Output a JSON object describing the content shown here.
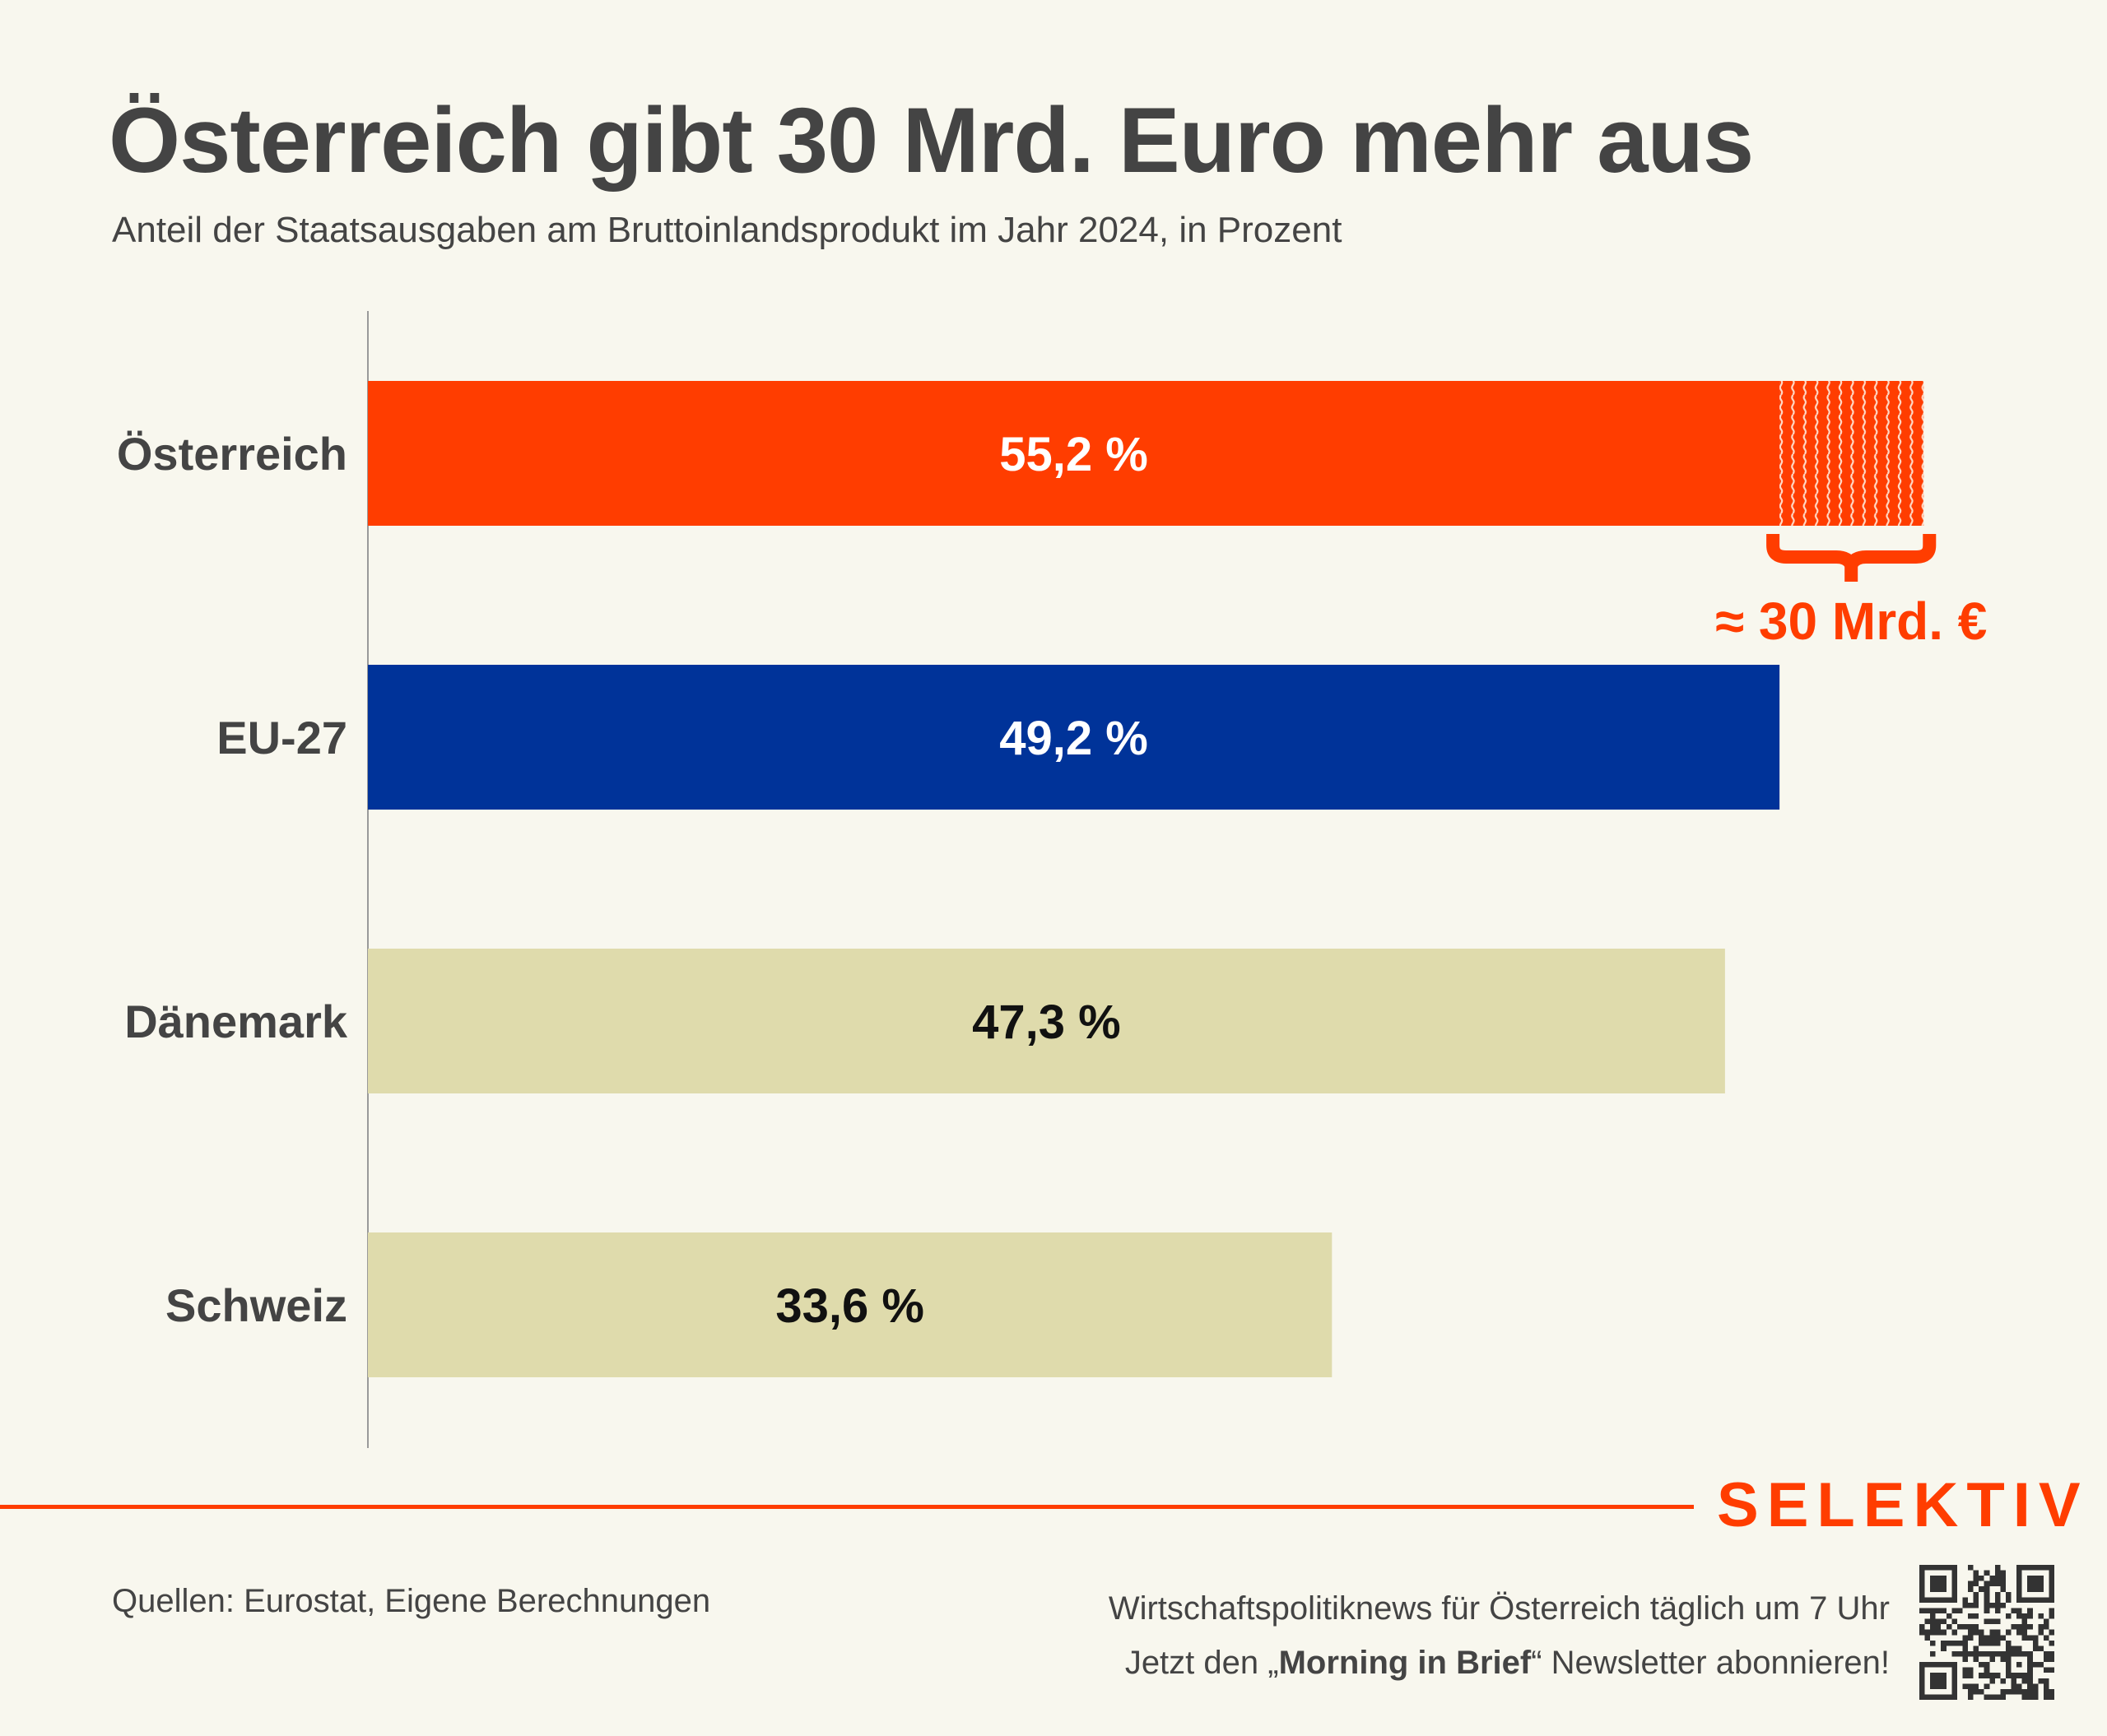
{
  "header": {
    "title": "Österreich gibt 30 Mrd. Euro mehr aus",
    "subtitle": "Anteil der Staatsausgaben am Bruttoinlandsprodukt im Jahr 2024, in Prozent"
  },
  "colors": {
    "background": "#f8f7ee",
    "accent": "#ff3d00",
    "eu_blue": "#003399",
    "neutral": "#dfdbac",
    "text": "#444444",
    "axis": "#9a9a9a"
  },
  "chart_data": {
    "type": "bar",
    "orientation": "horizontal",
    "title": "Österreich gibt 30 Mrd. Euro mehr aus",
    "subtitle": "Anteil der Staatsausgaben am Bruttoinlandsprodukt im Jahr 2024, in Prozent",
    "xlabel": "",
    "ylabel": "",
    "unit": "%",
    "grid": false,
    "legend": "none",
    "categories": [
      "Österreich",
      "EU-27",
      "Dänemark",
      "Schweiz"
    ],
    "values": [
      55.2,
      49.2,
      47.3,
      33.6
    ],
    "value_labels": [
      "55,2 %",
      "49,2 %",
      "47,3 %",
      "33,6 %"
    ],
    "bar_colors": [
      "#ff3d00",
      "#003399",
      "#dfdbac",
      "#dfdbac"
    ],
    "label_colors": [
      "#ffffff",
      "#ffffff",
      "#111111",
      "#111111"
    ],
    "xlim": [
      0,
      55.2
    ],
    "annotation": {
      "category": "Österreich",
      "from": 49.2,
      "to": 55.2,
      "pattern": "wavy-lines",
      "brace": true,
      "label": "≈ 30 Mrd. €"
    }
  },
  "footer": {
    "brand": "SELEKTIV",
    "sources": "Quellen: Eurostat, Eigene Berechnungen",
    "promo_line1": "Wirtschaftspolitiknews für Österreich täglich um 7 Uhr",
    "promo_line2_prefix": "Jetzt den „",
    "promo_line2_bold": "Morning in Brief",
    "promo_line2_suffix": "“ Newsletter abonnieren!",
    "qr_icon": "qr-code-icon"
  }
}
